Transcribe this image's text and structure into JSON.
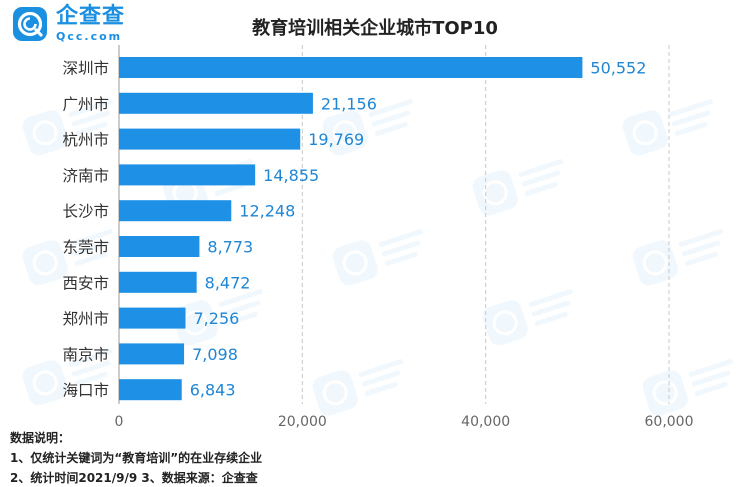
{
  "logo": {
    "name_cn": "企查查",
    "name_en": "Qcc.com"
  },
  "colors": {
    "bar": "#1e90e6",
    "brand": "#1b8fe0",
    "label": "#1f86d4",
    "grid": "#c8c8c8",
    "axis_text": "#666666"
  },
  "chart_data": {
    "type": "bar",
    "orientation": "horizontal",
    "title": "教育培训相关企业城市TOP10",
    "categories": [
      "深圳市",
      "广州市",
      "杭州市",
      "济南市",
      "长沙市",
      "东莞市",
      "西安市",
      "郑州市",
      "南京市",
      "海口市"
    ],
    "values": [
      50552,
      21156,
      19769,
      14855,
      12248,
      8773,
      8472,
      7256,
      7098,
      6843
    ],
    "value_labels": [
      "50,552",
      "21,156",
      "19,769",
      "14,855",
      "12,248",
      "8,773",
      "8,472",
      "7,256",
      "7,098",
      "6,843"
    ],
    "xlim": [
      0,
      60000
    ],
    "xticks": [
      0,
      20000,
      40000,
      60000
    ],
    "xtick_labels": [
      "0",
      "20,000",
      "40,000",
      "60,000"
    ],
    "grid": "vertical-dashed",
    "legend": "none"
  },
  "notes": {
    "title": "数据说明：",
    "line1": "1、仅统计关键词为“教育培训”的在业存续企业",
    "line2": "2、统计时间2021/9/9   3、数据来源：企查查"
  }
}
